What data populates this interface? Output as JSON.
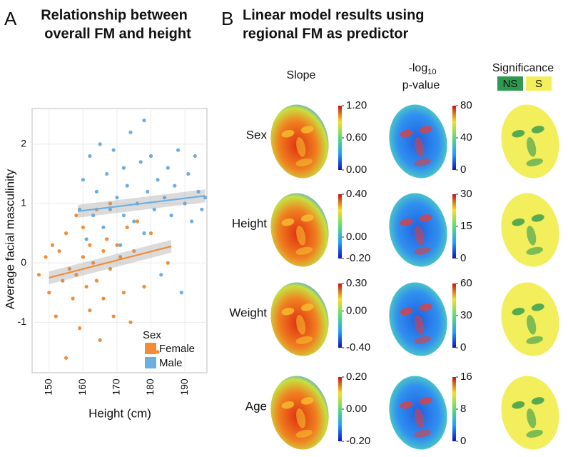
{
  "chart_data": {
    "type": "scatter",
    "panel_label": "A",
    "title": [
      "Relationship between",
      "overall FM and height"
    ],
    "x_label": "Height (cm)",
    "y_label": "Average facial masculinity",
    "xlim": [
      145,
      196.5
    ],
    "ylim": [
      -1.85,
      2.6
    ],
    "xticks": [
      150,
      160,
      170,
      180,
      190
    ],
    "yticks": [
      -1,
      0,
      1,
      2
    ],
    "grid": true,
    "legend_title": "Sex",
    "legend_position": "lower right",
    "series": [
      {
        "name": "Female",
        "color": "#f28c38",
        "x": [
          147,
          149,
          150,
          151,
          152,
          153,
          154,
          155,
          155,
          156,
          157,
          158,
          158,
          159,
          160,
          160,
          161,
          162,
          162,
          163,
          164,
          164,
          165,
          166,
          166,
          167,
          168,
          168,
          169,
          170,
          171,
          172,
          173,
          174,
          175,
          176,
          178,
          180,
          182,
          185
        ],
        "values": [
          -0.2,
          0.1,
          -0.5,
          0.3,
          -0.9,
          0.2,
          -0.3,
          -1.6,
          0.5,
          -0.1,
          -0.6,
          0.8,
          -0.2,
          -1.1,
          0.1,
          0.6,
          -0.4,
          -0.8,
          0.3,
          0.0,
          0.9,
          -0.3,
          -1.3,
          0.2,
          -0.6,
          0.4,
          -0.1,
          1.0,
          -0.9,
          0.3,
          0.1,
          -0.5,
          0.6,
          -1.0,
          0.2,
          0.7,
          -0.4,
          0.5,
          -1.5,
          0.0
        ],
        "fit_x": [
          150,
          186
        ],
        "fit_y": [
          -0.25,
          0.28
        ]
      },
      {
        "name": "Male",
        "color": "#6aafe0",
        "x": [
          159,
          160,
          161,
          162,
          163,
          164,
          165,
          166,
          167,
          168,
          169,
          170,
          171,
          172,
          172,
          173,
          174,
          175,
          176,
          177,
          178,
          178,
          179,
          180,
          181,
          182,
          183,
          184,
          185,
          186,
          187,
          188,
          189,
          190,
          191,
          192,
          193,
          194,
          195,
          196
        ],
        "values": [
          0.9,
          1.4,
          0.4,
          1.8,
          0.8,
          1.2,
          2.0,
          0.6,
          1.5,
          0.9,
          1.9,
          1.1,
          0.3,
          1.6,
          0.8,
          1.3,
          2.2,
          0.7,
          1.0,
          1.7,
          2.4,
          0.5,
          1.2,
          1.8,
          0.9,
          1.4,
          -0.2,
          1.1,
          1.6,
          0.8,
          1.3,
          1.9,
          -0.5,
          1.0,
          1.5,
          0.7,
          1.8,
          1.2,
          0.9,
          1.1
        ],
        "fit_x": [
          158.5,
          196
        ],
        "fit_y": [
          0.87,
          1.13
        ]
      }
    ]
  },
  "panel_b": {
    "panel_label": "B",
    "title": [
      "Linear model results using",
      "regional FM as predictor"
    ],
    "slope_header": "Slope",
    "pvalue_header": {
      "prefix": "-log",
      "subscript": "10",
      "line2": "p-value"
    },
    "significance_header": "Significance",
    "significance_legend": [
      {
        "label": "NS",
        "color": "#2e9a4f"
      },
      {
        "label": "S",
        "color": "#f2ee5c"
      }
    ],
    "rows": [
      {
        "label": "Sex",
        "slope_ticks": [
          {
            "value": 0,
            "label": "0.00"
          },
          {
            "value": 0.6,
            "label": "0.60"
          },
          {
            "value": 1.2,
            "label": "1.20"
          }
        ],
        "pvalue_ticks": [
          0,
          40,
          80
        ]
      },
      {
        "label": "Height",
        "slope_ticks": [
          {
            "value": -0.2,
            "label": "-0.20"
          },
          {
            "value": 0,
            "label": "0.00"
          },
          {
            "value": 0.4,
            "label": "0.40"
          }
        ],
        "pvalue_ticks": [
          0,
          15,
          30
        ]
      },
      {
        "label": "Weight",
        "slope_ticks": [
          {
            "value": -0.4,
            "label": "-0.40"
          },
          {
            "value": 0,
            "label": "0.00"
          },
          {
            "value": 0.3,
            "label": "0.30"
          }
        ],
        "pvalue_ticks": [
          0,
          30,
          60
        ]
      },
      {
        "label": "Age",
        "slope_ticks": [
          {
            "value": -0.2,
            "label": "-0.20"
          },
          {
            "value": 0,
            "label": "0.00"
          },
          {
            "value": 0.2,
            "label": "0.20"
          }
        ],
        "pvalue_ticks": [
          0,
          8,
          16
        ]
      }
    ]
  }
}
